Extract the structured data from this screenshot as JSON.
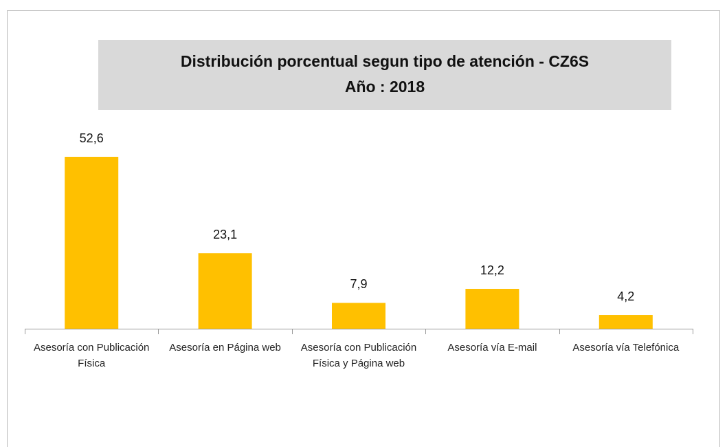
{
  "chart_data": {
    "type": "bar",
    "title": "Distribución porcentual segun tipo de atención - CZ6S",
    "subtitle": "Año : 2018",
    "categories": [
      "Asesoría con Publicación Física",
      "Asesoría en Página web",
      "Asesoría con Publicación Física y Página web",
      "Asesoría vía E-mail",
      "Asesoría vía Telefónica"
    ],
    "values": [
      52.6,
      23.1,
      7.9,
      12.2,
      4.2
    ],
    "value_labels": [
      "52,6",
      "23,1",
      "7,9",
      "12,2",
      "4,2"
    ],
    "color": "#ffc000"
  }
}
